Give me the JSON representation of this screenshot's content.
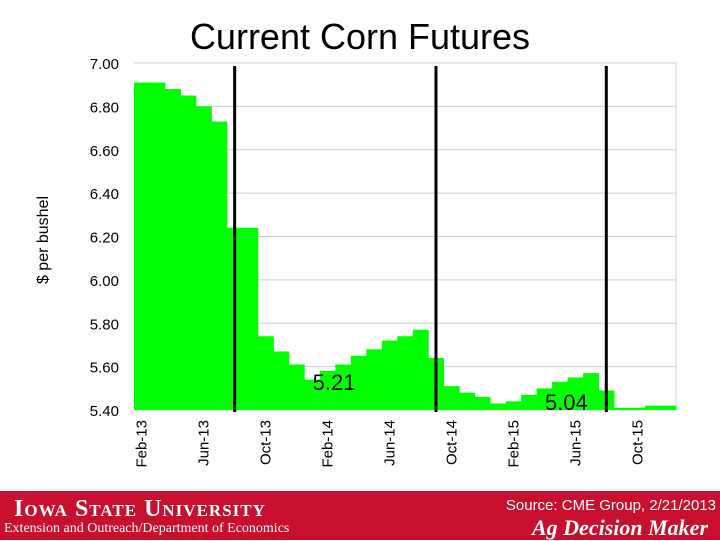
{
  "chart_data": {
    "type": "bar",
    "title": "Current Corn Futures",
    "ylabel": "$ per bushel",
    "ylim": [
      5.4,
      7.0
    ],
    "yticks": [
      "7.00",
      "6.80",
      "6.60",
      "6.40",
      "6.20",
      "6.00",
      "5.80",
      "5.60",
      "5.40"
    ],
    "xtick_labels": [
      "Feb-13",
      "Jun-13",
      "Oct-13",
      "Feb-14",
      "Jun-14",
      "Oct-14",
      "Feb-15",
      "Jun-15",
      "Oct-15"
    ],
    "months": [
      "Feb-13",
      "Mar-13",
      "Apr-13",
      "May-13",
      "Jun-13",
      "Jul-13",
      "Aug-13",
      "Sep-13",
      "Oct-13",
      "Nov-13",
      "Dec-13",
      "Jan-14",
      "Feb-14",
      "Mar-14",
      "Apr-14",
      "May-14",
      "Jun-14",
      "Jul-14",
      "Aug-14",
      "Sep-14",
      "Oct-14",
      "Nov-14",
      "Dec-14",
      "Jan-15",
      "Feb-15",
      "Mar-15",
      "Apr-15",
      "May-15",
      "Jun-15",
      "Jul-15",
      "Aug-15",
      "Sep-15",
      "Oct-15",
      "Nov-15",
      "Dec-15"
    ],
    "values": [
      6.91,
      6.91,
      6.88,
      6.85,
      6.8,
      6.73,
      6.24,
      6.24,
      5.74,
      5.67,
      5.61,
      5.54,
      5.58,
      5.61,
      5.65,
      5.68,
      5.72,
      5.74,
      5.77,
      5.64,
      5.51,
      5.48,
      5.46,
      5.43,
      5.44,
      5.47,
      5.5,
      5.53,
      5.55,
      5.57,
      5.49,
      5.41,
      5.41,
      5.42,
      5.42
    ],
    "bar_color": "#00ff00",
    "grid": true,
    "vertical_markers": [
      "Aug-13",
      "Sep-14",
      "Aug-15"
    ],
    "annotations": [
      {
        "text": "5.21",
        "at": "Jan-14"
      },
      {
        "text": "5.04",
        "at": "Apr-15"
      }
    ]
  },
  "footer": {
    "university": "Iowa State University",
    "department": "Extension and Outreach/Department of Economics",
    "source": "Source: CME Group, 2/21/2013",
    "brand": "Ag Decision Maker",
    "background_color": "#c8102e"
  }
}
